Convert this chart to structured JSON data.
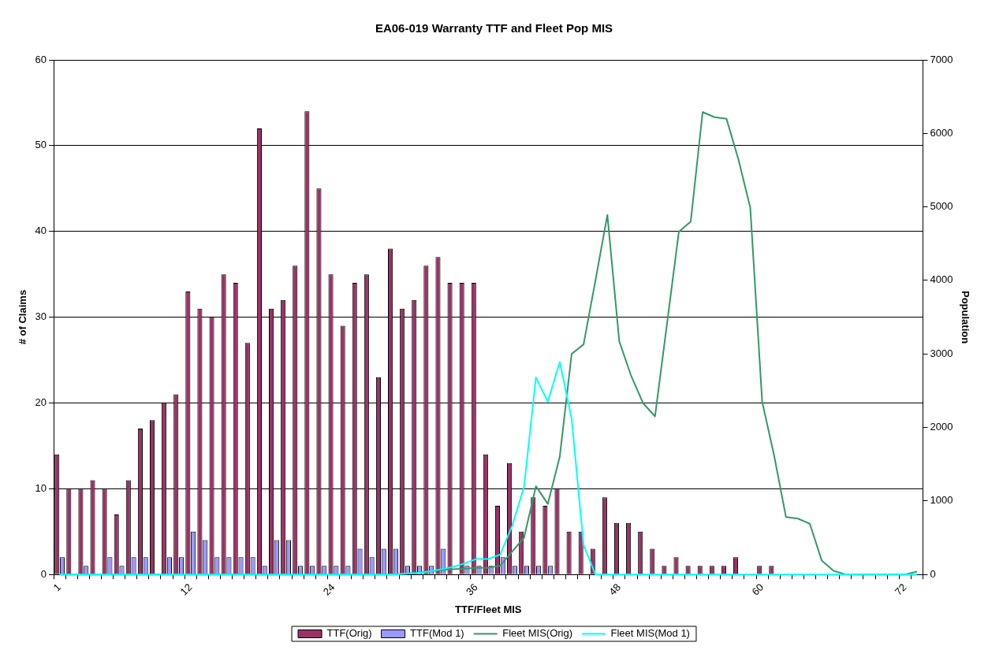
{
  "chart_data": {
    "type": "bar",
    "title": "EA06-019 Warranty TTF and Fleet Pop MIS",
    "xlabel": "TTF/Fleet MIS",
    "ylabel": "# of Claims",
    "y2label": "Population",
    "categories": [
      "1",
      null,
      null,
      null,
      null,
      null,
      null,
      null,
      null,
      null,
      null,
      "12",
      null,
      null,
      null,
      null,
      null,
      null,
      null,
      null,
      null,
      null,
      null,
      "24",
      null,
      null,
      null,
      null,
      null,
      null,
      null,
      null,
      null,
      null,
      null,
      "36",
      null,
      null,
      null,
      null,
      null,
      null,
      null,
      null,
      null,
      null,
      null,
      "48",
      null,
      null,
      null,
      null,
      null,
      null,
      null,
      null,
      null,
      null,
      null,
      "60",
      null,
      null,
      null,
      null,
      null,
      null,
      null,
      null,
      null,
      null,
      null,
      "72",
      null
    ],
    "series": [
      {
        "name": "TTF(Orig)",
        "color": "#993366",
        "values": [
          14,
          10,
          10,
          11,
          10,
          7,
          11,
          17,
          18,
          20,
          21,
          33,
          31,
          30,
          35,
          34,
          27,
          52,
          31,
          32,
          36,
          54,
          45,
          35,
          29,
          34,
          35,
          23,
          38,
          31,
          32,
          36,
          37,
          34,
          34,
          34,
          14,
          8,
          13,
          5,
          9,
          8,
          10,
          5,
          5,
          3,
          9,
          6,
          6,
          5,
          3,
          1,
          2,
          1,
          1,
          1,
          1,
          2,
          0,
          1,
          1,
          0,
          0,
          0,
          0,
          0,
          0,
          0,
          0,
          0,
          0,
          0,
          0
        ]
      },
      {
        "name": "TTF(Mod 1)",
        "color": "#9999ff",
        "values": [
          2,
          0,
          1,
          0,
          2,
          1,
          2,
          2,
          0,
          2,
          2,
          5,
          4,
          2,
          2,
          2,
          2,
          1,
          4,
          4,
          1,
          1,
          1,
          1,
          1,
          3,
          2,
          3,
          3,
          1,
          1,
          1,
          3,
          0,
          1,
          1,
          1,
          2,
          1,
          1,
          1,
          1,
          0,
          0,
          0,
          0,
          0,
          0,
          0,
          0,
          0,
          0,
          0,
          0,
          0,
          0,
          0,
          0,
          0,
          0,
          0,
          0,
          0,
          0,
          0,
          0,
          0,
          0,
          0,
          0,
          0,
          0,
          0
        ]
      },
      {
        "name": "Fleet MIS(Orig)",
        "type": "line",
        "axis": "y2",
        "color": "#339966",
        "values": [
          0,
          0,
          0,
          0,
          0,
          0,
          0,
          0,
          0,
          0,
          0,
          0,
          0,
          0,
          0,
          0,
          0,
          0,
          0,
          0,
          0,
          0,
          0,
          0,
          0,
          0,
          0,
          0,
          0,
          10,
          20,
          40,
          60,
          70,
          80,
          90,
          90,
          120,
          310,
          500,
          1200,
          960,
          1600,
          3000,
          3130,
          4000,
          4890,
          3170,
          2700,
          2330,
          2150,
          3400,
          4660,
          4800,
          6290,
          6220,
          6200,
          5650,
          4990,
          2350,
          1620,
          780,
          760,
          690,
          190,
          50,
          0,
          0,
          0,
          0,
          0,
          0,
          40
        ]
      },
      {
        "name": "Fleet MIS(Mod 1)",
        "type": "line",
        "axis": "y2",
        "color": "#00ffff",
        "values": [
          0,
          0,
          0,
          0,
          0,
          0,
          0,
          0,
          0,
          0,
          0,
          0,
          0,
          0,
          0,
          0,
          0,
          0,
          0,
          0,
          0,
          0,
          0,
          0,
          0,
          0,
          0,
          0,
          0,
          10,
          20,
          40,
          70,
          100,
          150,
          210,
          210,
          270,
          660,
          1190,
          2680,
          2350,
          2890,
          2120,
          400,
          0,
          0,
          0,
          0,
          0,
          0,
          0,
          0,
          0,
          0,
          0,
          0,
          0,
          0,
          0,
          0,
          0,
          0,
          0,
          0,
          0,
          0,
          0,
          0,
          0,
          0,
          0,
          0
        ]
      }
    ],
    "ylim": [
      0,
      60
    ],
    "yticks": [
      0,
      10,
      20,
      30,
      40,
      50,
      60
    ],
    "y2lim": [
      0,
      7000
    ],
    "y2ticks": [
      0,
      1000,
      2000,
      3000,
      4000,
      5000,
      6000,
      7000
    ],
    "grid": "y",
    "legend": "bottom",
    "marker": "none",
    "line_style": "solid"
  }
}
